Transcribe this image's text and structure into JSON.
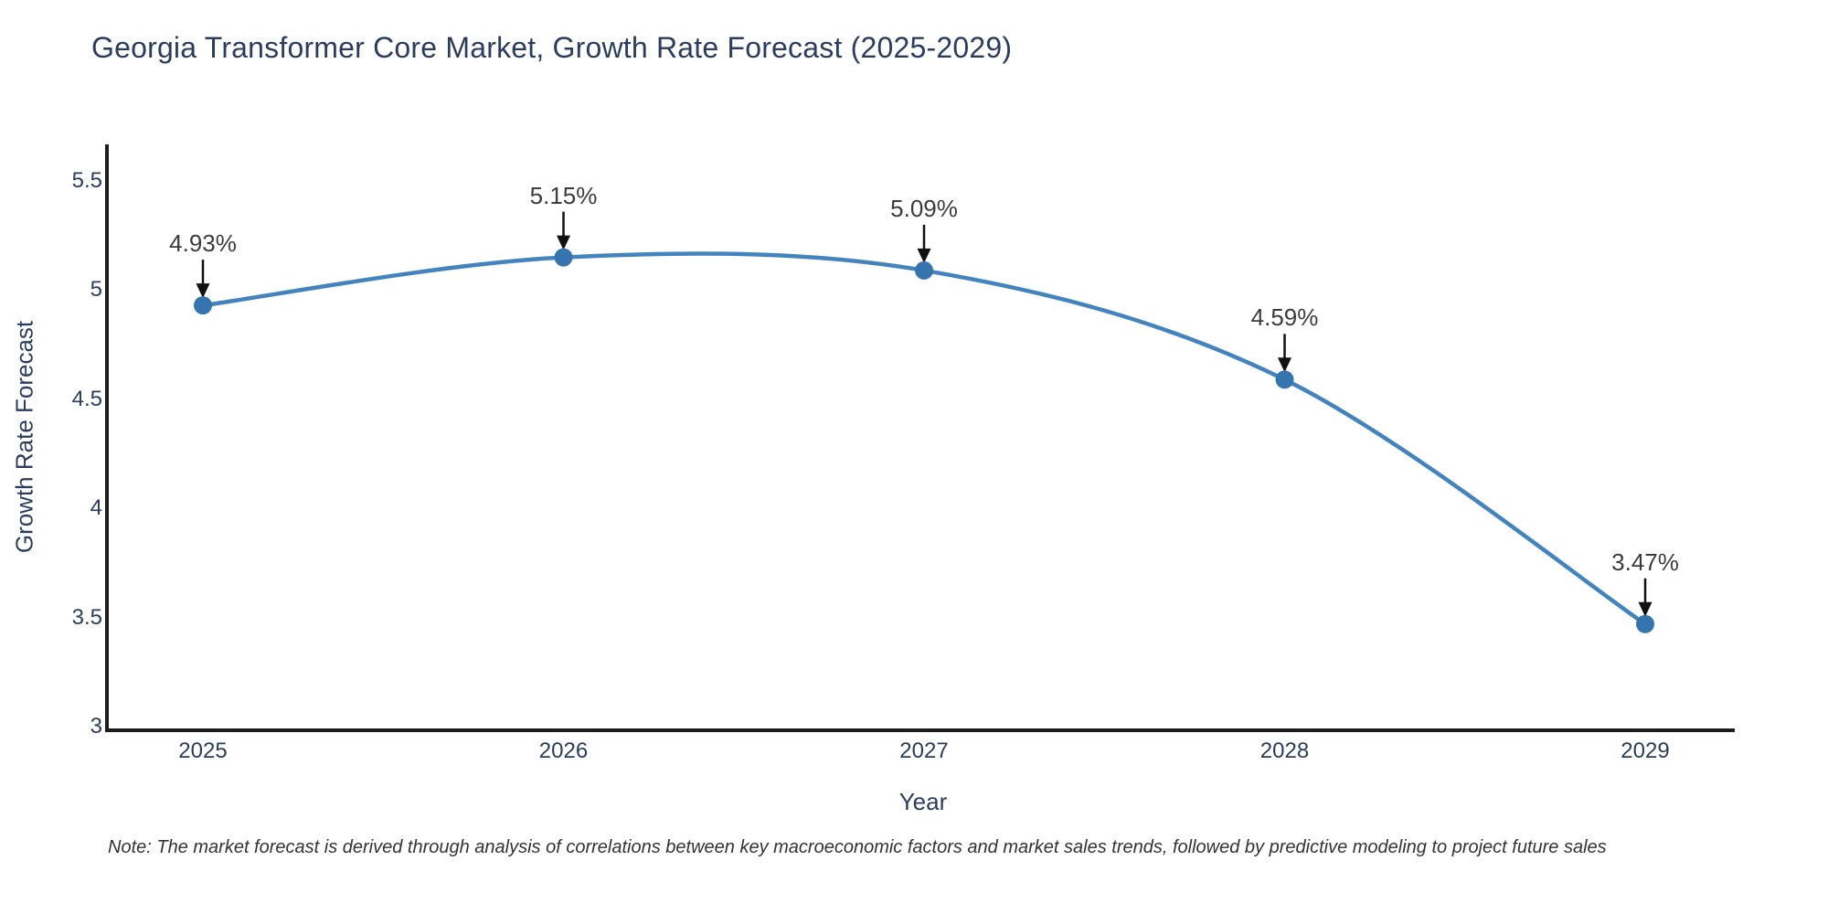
{
  "header": {
    "title": "Georgia Transformer Core Market, Growth Rate Forecast (2025-2029)"
  },
  "footer": {
    "note": "Note: The market forecast is derived through analysis of correlations between key macroeconomic factors and market sales trends, followed by predictive modeling to project future sales"
  },
  "colors": {
    "background": "#ffffff",
    "title_text": "#2b3d5e",
    "tick_text": "#2b3d5e",
    "axis_line": "#1c1c1c",
    "line": "#4384bf",
    "marker": "#3574ae",
    "annotation_text": "#3c3c3c",
    "arrow": "#111111",
    "note_text": "#333333"
  },
  "chart_data": {
    "type": "line",
    "line_shape": "spline",
    "title": "Georgia Transformer Core Market, Growth Rate Forecast (2025-2029)",
    "xlabel": "Year",
    "ylabel": "Growth Rate Forecast",
    "categories": [
      "2025",
      "2026",
      "2027",
      "2028",
      "2029"
    ],
    "values": [
      4.93,
      5.15,
      5.09,
      4.59,
      3.47
    ],
    "point_labels": [
      "4.93%",
      "5.15%",
      "5.09%",
      "4.59%",
      "3.47%"
    ],
    "ylim": [
      3,
      5.5
    ],
    "yticks": [
      "3",
      "3.5",
      "4",
      "4.5",
      "5",
      "5.5"
    ],
    "grid": false,
    "legend_position": "none",
    "markers": true,
    "annotations": "arrow-down-to-point"
  }
}
